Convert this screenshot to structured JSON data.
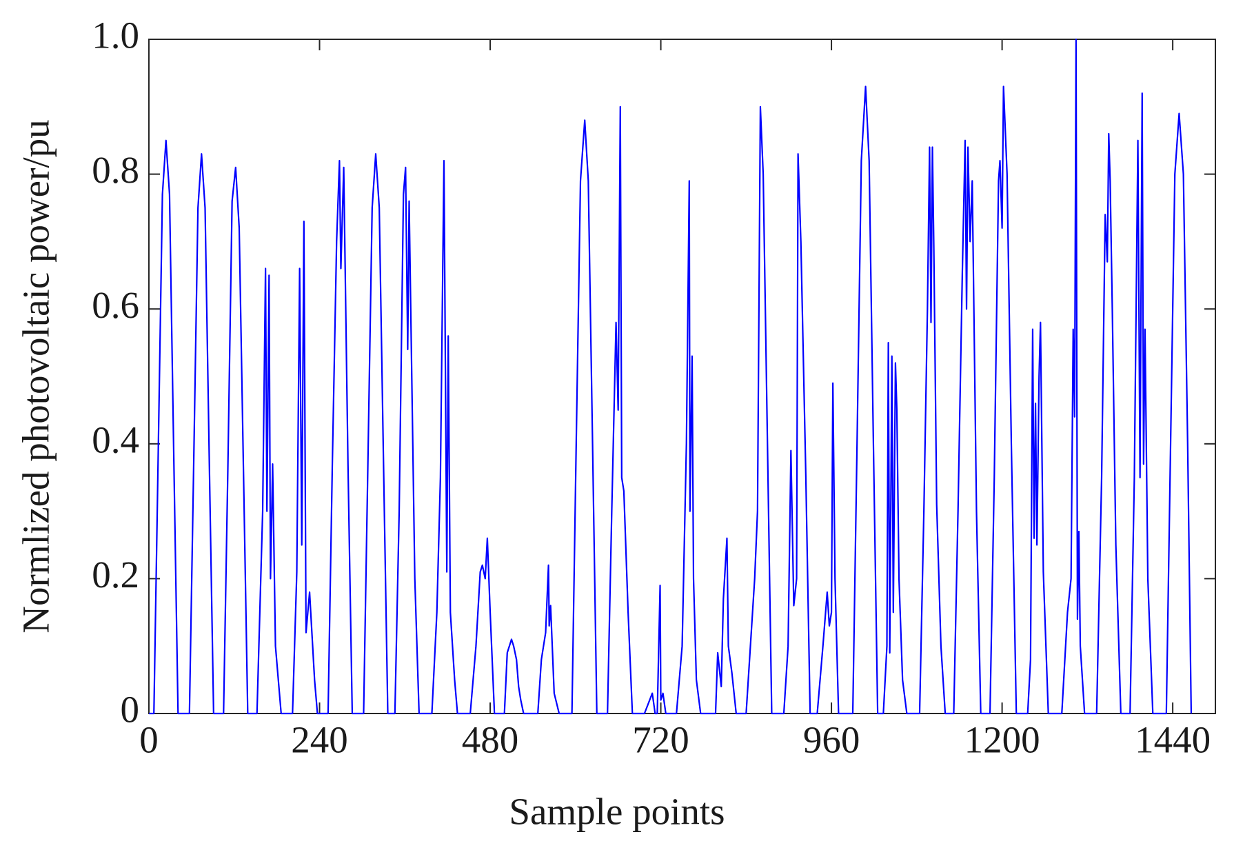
{
  "chart_data": {
    "type": "line",
    "xlabel": "Sample points",
    "ylabel": "Normlized photovoltaic power/pu",
    "color": "#0000ff",
    "xlim": [
      0,
      1500
    ],
    "ylim": [
      0,
      1
    ],
    "xticks": [
      0,
      240,
      480,
      720,
      960,
      1200,
      1440
    ],
    "yticks": [
      0,
      0.2,
      0.4,
      0.6,
      0.8,
      {
        "value": 1,
        "label": "1.0"
      }
    ],
    "x": [
      0,
      7,
      13,
      19,
      24,
      29,
      35,
      41,
      57,
      63,
      69,
      74,
      79,
      85,
      91,
      105,
      111,
      117,
      122,
      127,
      133,
      139,
      152,
      160,
      164,
      166,
      169,
      171,
      174,
      178,
      186,
      202,
      208,
      212,
      215,
      218,
      221,
      226,
      233,
      237,
      252,
      258,
      264,
      268,
      270,
      274,
      280,
      286,
      302,
      308,
      314,
      319,
      324,
      330,
      336,
      346,
      352,
      358,
      361,
      364,
      366,
      369,
      374,
      380,
      398,
      405,
      410,
      415,
      419,
      421,
      424,
      430,
      434,
      452,
      460,
      466,
      469,
      473,
      476,
      480,
      486,
      500,
      504,
      510,
      513,
      517,
      520,
      523,
      527,
      547,
      552,
      558,
      562,
      563,
      565,
      570,
      577,
      595,
      601,
      607,
      613,
      618,
      624,
      630,
      645,
      651,
      657,
      660,
      663,
      665,
      668,
      674,
      680,
      697,
      708,
      712,
      715,
      719,
      720,
      723,
      727,
      742,
      750,
      756,
      760,
      761,
      764,
      766,
      770,
      776,
      797,
      800,
      805,
      808,
      813,
      815,
      820,
      826,
      840,
      846,
      852,
      856,
      860,
      864,
      870,
      876,
      893,
      899,
      903,
      907,
      911,
      913,
      917,
      924,
      930,
      940,
      948,
      954,
      957,
      960,
      962,
      965,
      970,
      990,
      996,
      1002,
      1008,
      1013,
      1019,
      1025,
      1033,
      1038,
      1040,
      1042,
      1045,
      1047,
      1050,
      1052,
      1055,
      1060,
      1066,
      1084,
      1090,
      1095,
      1098,
      1100,
      1102,
      1104,
      1108,
      1114,
      1120,
      1132,
      1138,
      1144,
      1148,
      1150,
      1152,
      1155,
      1158,
      1164,
      1170,
      1183,
      1189,
      1195,
      1197,
      1200,
      1202,
      1207,
      1213,
      1220,
      1236,
      1240,
      1243,
      1245,
      1247,
      1249,
      1252,
      1254,
      1258,
      1265,
      1284,
      1292,
      1297,
      1300,
      1302,
      1304,
      1306,
      1308,
      1310,
      1316,
      1333,
      1340,
      1345,
      1348,
      1350,
      1352,
      1355,
      1360,
      1367,
      1380,
      1386,
      1391,
      1394,
      1397,
      1399,
      1401,
      1405,
      1412,
      1431,
      1437,
      1443,
      1449,
      1455,
      1461,
      1466
    ],
    "values": [
      0,
      0,
      0.38,
      0.77,
      0.85,
      0.77,
      0.38,
      0,
      0,
      0.37,
      0.75,
      0.83,
      0.75,
      0.37,
      0,
      0,
      0.36,
      0.76,
      0.81,
      0.72,
      0.36,
      0,
      0,
      0.3,
      0.66,
      0.3,
      0.65,
      0.2,
      0.37,
      0.1,
      0,
      0,
      0.21,
      0.66,
      0.25,
      0.73,
      0.12,
      0.18,
      0.05,
      0,
      0,
      0.37,
      0.7,
      0.82,
      0.66,
      0.81,
      0.37,
      0,
      0,
      0.37,
      0.75,
      0.83,
      0.75,
      0.37,
      0,
      0,
      0.3,
      0.77,
      0.81,
      0.54,
      0.76,
      0.55,
      0.2,
      0,
      0,
      0.15,
      0.35,
      0.82,
      0.21,
      0.56,
      0.15,
      0.05,
      0,
      0,
      0.1,
      0.21,
      0.22,
      0.2,
      0.26,
      0.15,
      0,
      0,
      0.09,
      0.11,
      0.1,
      0.08,
      0.04,
      0.02,
      0,
      0,
      0.08,
      0.12,
      0.22,
      0.13,
      0.16,
      0.03,
      0,
      0,
      0.4,
      0.79,
      0.88,
      0.79,
      0.4,
      0,
      0,
      0.3,
      0.58,
      0.45,
      0.9,
      0.35,
      0.33,
      0.15,
      0,
      0,
      0.03,
      0,
      0,
      0.19,
      0.02,
      0.03,
      0,
      0,
      0.1,
      0.4,
      0.79,
      0.3,
      0.53,
      0.2,
      0.05,
      0,
      0,
      0.09,
      0.04,
      0.17,
      0.26,
      0.1,
      0.06,
      0,
      0,
      0.1,
      0.2,
      0.3,
      0.9,
      0.8,
      0.4,
      0,
      0,
      0.1,
      0.39,
      0.16,
      0.2,
      0.83,
      0.7,
      0.35,
      0,
      0,
      0.1,
      0.18,
      0.13,
      0.15,
      0.49,
      0.2,
      0,
      0,
      0.4,
      0.82,
      0.93,
      0.82,
      0.4,
      0,
      0,
      0.1,
      0.55,
      0.09,
      0.53,
      0.15,
      0.52,
      0.45,
      0.2,
      0.05,
      0,
      0,
      0.3,
      0.6,
      0.84,
      0.58,
      0.84,
      0.69,
      0.31,
      0.1,
      0,
      0,
      0.3,
      0.65,
      0.85,
      0.6,
      0.84,
      0.7,
      0.79,
      0.3,
      0,
      0,
      0.35,
      0.79,
      0.82,
      0.72,
      0.93,
      0.8,
      0.4,
      0,
      0,
      0.08,
      0.57,
      0.26,
      0.46,
      0.25,
      0.5,
      0.58,
      0.21,
      0,
      0,
      0.15,
      0.2,
      0.57,
      0.44,
      1.0,
      0.14,
      0.27,
      0.1,
      0,
      0,
      0.35,
      0.74,
      0.67,
      0.86,
      0.79,
      0.6,
      0.25,
      0,
      0,
      0.35,
      0.85,
      0.35,
      0.92,
      0.37,
      0.57,
      0.2,
      0,
      0,
      0.4,
      0.8,
      0.89,
      0.8,
      0.4,
      0
    ]
  }
}
